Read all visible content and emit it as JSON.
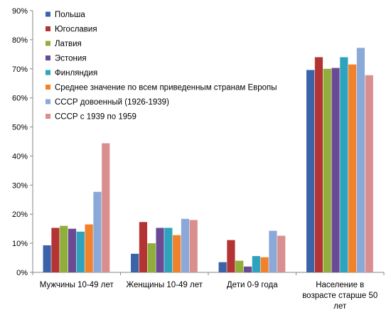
{
  "chart_data": {
    "type": "bar",
    "title": "",
    "xlabel": "",
    "ylabel": "",
    "ylim": [
      0,
      90
    ],
    "yticks": [
      "0%",
      "10%",
      "20%",
      "30%",
      "40%",
      "50%",
      "60%",
      "70%",
      "80%",
      "90%"
    ],
    "grid": false,
    "legend_position": "top-left",
    "categories": [
      [
        "Мужчины 10-49 лет"
      ],
      [
        "Женщины 10-49 лет"
      ],
      [
        "Дети  0-9 года"
      ],
      [
        "Население в",
        "возрасте старше 50",
        "лет"
      ]
    ],
    "series": [
      {
        "name": "Польша",
        "color": "#3b63a8",
        "values": [
          9.3,
          6.4,
          3.5,
          69.6
        ]
      },
      {
        "name": "Югославия",
        "color": "#b33432",
        "values": [
          15.3,
          17.3,
          11.1,
          74.0
        ]
      },
      {
        "name": "Латвия",
        "color": "#8fae3b",
        "values": [
          16.0,
          10.0,
          4.0,
          70.0
        ]
      },
      {
        "name": "Эстония",
        "color": "#6a4a93",
        "values": [
          15.0,
          15.3,
          2.0,
          70.3
        ]
      },
      {
        "name": "Финляндия",
        "color": "#2ea3bd",
        "values": [
          14.0,
          15.3,
          5.6,
          74.0
        ]
      },
      {
        "name": "Среднее значение по всем приведенным странам Европы",
        "color": "#f1822b",
        "values": [
          16.5,
          12.8,
          5.2,
          71.5
        ]
      },
      {
        "name": "СССР довоенный (1926-1939)",
        "color": "#8aa8d8",
        "values": [
          27.7,
          18.4,
          14.3,
          77.2
        ]
      },
      {
        "name": "СССР с 1939 по 1959",
        "color": "#d98f8f",
        "values": [
          44.4,
          18.0,
          12.6,
          67.8
        ]
      }
    ]
  }
}
